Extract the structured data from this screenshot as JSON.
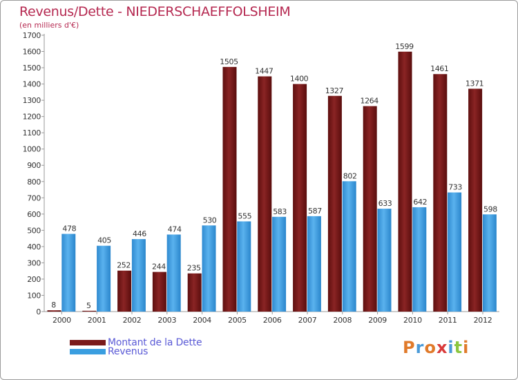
{
  "chart_data": {
    "type": "bar",
    "title": "Revenus/Dette - NIEDERSCHAEFFOLSHEIM",
    "subtitle": "(en milliers d'€)",
    "categories": [
      "2000",
      "2001",
      "2002",
      "2003",
      "2004",
      "2005",
      "2006",
      "2007",
      "2008",
      "2009",
      "2010",
      "2011",
      "2012"
    ],
    "series": [
      {
        "name": "Montant de la Dette",
        "color": "#7a1a1a",
        "values": [
          8,
          5,
          252,
          244,
          235,
          1505,
          1447,
          1400,
          1327,
          1264,
          1599,
          1461,
          1371
        ]
      },
      {
        "name": "Revenus",
        "color": "#3a9ee0",
        "values": [
          478,
          405,
          446,
          474,
          530,
          555,
          583,
          587,
          802,
          633,
          642,
          733,
          598
        ]
      }
    ],
    "ylim": [
      0,
      1700
    ],
    "yticks": [
      0,
      100,
      200,
      300,
      400,
      500,
      600,
      700,
      800,
      900,
      1000,
      1100,
      1200,
      1300,
      1400,
      1500,
      1600,
      1700
    ],
    "grid": false,
    "legend": "bottom-left"
  },
  "legend": {
    "debt_label": "Montant de la Dette",
    "revenue_label": "Revenus"
  },
  "logo": {
    "letters": [
      {
        "char": "P",
        "color": "#e07a2a"
      },
      {
        "char": "r",
        "color": "#4a9ad8"
      },
      {
        "char": "o",
        "color": "#e07a2a"
      },
      {
        "char": "x",
        "color": "#d93a3a"
      },
      {
        "char": "i",
        "color": "#4a9ad8"
      },
      {
        "char": "t",
        "color": "#8cc63f"
      },
      {
        "char": "i",
        "color": "#e07a2a"
      }
    ]
  }
}
